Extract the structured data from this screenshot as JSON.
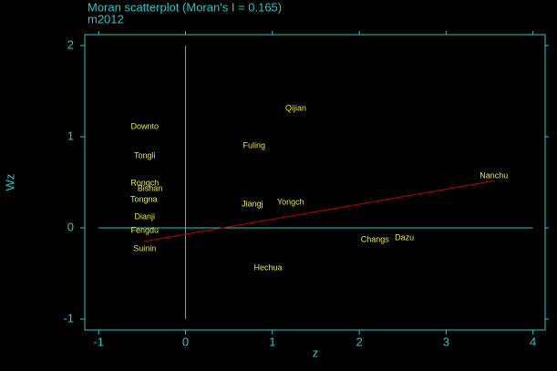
{
  "chart_data": {
    "type": "scatter",
    "title": "Moran scatterplot (Moran's I = 0.165)",
    "subtitle": "m2012",
    "x_label": "z",
    "y_label": "Wz",
    "xlim": [
      -1.16,
      4.14
    ],
    "ylim": [
      -1.12,
      2.12
    ],
    "xticks": [
      -1,
      0,
      1,
      2,
      3,
      4
    ],
    "yticks": [
      -1,
      0,
      1,
      2
    ],
    "labels": [
      "Qijian",
      "Downto",
      "Fuling",
      "Tongli",
      "Nanchu",
      "Rongch",
      "Bishan",
      "Tongna",
      "Jiangj",
      "Yongch",
      "Dianji",
      "Fengdu",
      "Changs",
      "Dazu",
      "Suinin",
      "Hechua"
    ],
    "x": [
      1.27,
      -0.47,
      0.79,
      -0.47,
      3.55,
      -0.47,
      -0.41,
      -0.48,
      0.77,
      1.21,
      -0.47,
      -0.47,
      2.18,
      2.52,
      -0.47,
      0.95
    ],
    "values": [
      1.31,
      1.11,
      0.9,
      0.79,
      0.57,
      0.49,
      0.43,
      0.31,
      0.26,
      0.28,
      0.12,
      -0.03,
      -0.13,
      -0.11,
      -0.23,
      -0.44
    ],
    "fit": {
      "slope": 0.165,
      "intercept": -0.07,
      "color": "#c00000"
    },
    "label_color": "#e6e64a",
    "axis_color": "#2ec4c4"
  }
}
